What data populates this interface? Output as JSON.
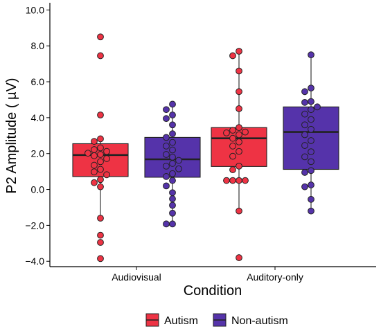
{
  "chart_data": {
    "type": "box",
    "xlabel": "Condition",
    "ylabel": "P2 Amplitude ( µV)",
    "categories": [
      "Audiovisual",
      "Auditory-only"
    ],
    "ylim": [
      -4.3,
      10.4
    ],
    "yticks": [
      -4.0,
      -2.0,
      0.0,
      2.0,
      4.0,
      6.0,
      8.0,
      10.0
    ],
    "ytick_labels": [
      "−4.0",
      "−2.0",
      "0.0",
      "2.0",
      "4.0",
      "6.0",
      "8.0",
      "10.0"
    ],
    "grid": false,
    "legend_position": "bottom",
    "series": [
      {
        "name": "Autism",
        "color": "#EE3344",
        "boxes": [
          {
            "category": "Audiovisual",
            "q1": 0.72,
            "median": 1.92,
            "q3": 2.55,
            "whisker_low": -1.6,
            "whisker_high": 2.95,
            "points": [
              8.5,
              7.45,
              4.15,
              2.82,
              2.68,
              2.32,
              2.22,
              2.12,
              2.02,
              1.95,
              1.88,
              1.72,
              1.55,
              1.35,
              1.12,
              0.98,
              0.82,
              0.55,
              0.38,
              0.15,
              -1.6,
              -2.55,
              -2.95,
              -3.85
            ]
          },
          {
            "category": "Auditory-only",
            "q1": 1.28,
            "median": 2.85,
            "q3": 3.45,
            "whisker_low": -1.2,
            "whisker_high": 7.7,
            "points": [
              7.7,
              7.45,
              6.6,
              5.45,
              4.5,
              3.45,
              3.3,
              3.2,
              3.15,
              3.05,
              2.85,
              2.65,
              2.42,
              2.12,
              1.85,
              1.3,
              1.1,
              0.5,
              0.5,
              0.5,
              0.5,
              -1.2,
              -3.8
            ]
          }
        ]
      },
      {
        "name": "Non-autism",
        "color": "#5533AA",
        "boxes": [
          {
            "category": "Audiovisual",
            "q1": 0.68,
            "median": 1.68,
            "q3": 2.9,
            "whisker_low": -1.95,
            "whisker_high": 4.75,
            "points": [
              4.75,
              4.45,
              4.15,
              3.95,
              3.6,
              3.1,
              2.9,
              2.62,
              2.42,
              2.2,
              1.95,
              1.8,
              1.62,
              1.45,
              1.3,
              1.15,
              0.88,
              0.72,
              0.5,
              0.2,
              -0.18,
              -0.52,
              -0.88,
              -1.32,
              -1.92,
              -1.92
            ]
          },
          {
            "category": "Auditory-only",
            "q1": 1.12,
            "median": 3.2,
            "q3": 4.6,
            "whisker_low": -1.2,
            "whisker_high": 7.5,
            "points": [
              7.5,
              5.65,
              5.45,
              4.9,
              4.85,
              4.6,
              4.45,
              4.2,
              3.9,
              3.6,
              3.35,
              3.05,
              2.72,
              2.45,
              2.1,
              1.82,
              1.55,
              1.05,
              0.95,
              0.25,
              0.15,
              -0.55,
              -1.2
            ]
          }
        ]
      }
    ]
  }
}
